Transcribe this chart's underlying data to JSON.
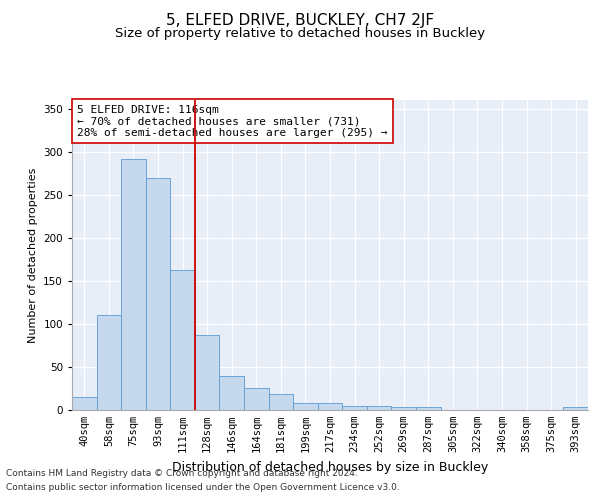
{
  "title": "5, ELFED DRIVE, BUCKLEY, CH7 2JF",
  "subtitle": "Size of property relative to detached houses in Buckley",
  "xlabel": "Distribution of detached houses by size in Buckley",
  "ylabel": "Number of detached properties",
  "categories": [
    "40sqm",
    "58sqm",
    "75sqm",
    "93sqm",
    "111sqm",
    "128sqm",
    "146sqm",
    "164sqm",
    "181sqm",
    "199sqm",
    "217sqm",
    "234sqm",
    "252sqm",
    "269sqm",
    "287sqm",
    "305sqm",
    "322sqm",
    "340sqm",
    "358sqm",
    "375sqm",
    "393sqm"
  ],
  "values": [
    15,
    110,
    291,
    270,
    163,
    87,
    40,
    26,
    19,
    8,
    8,
    5,
    5,
    3,
    3,
    0,
    0,
    0,
    0,
    0,
    3
  ],
  "bar_color": "#c5d8ed",
  "bar_edgecolor": "#5b9bd5",
  "vline_x": 4.5,
  "vline_color": "#cc0000",
  "annotation_text": "5 ELFED DRIVE: 116sqm\n← 70% of detached houses are smaller (731)\n28% of semi-detached houses are larger (295) →",
  "annotation_box_edgecolor": "#cc0000",
  "ylim": [
    0,
    360
  ],
  "yticks": [
    0,
    50,
    100,
    150,
    200,
    250,
    300,
    350
  ],
  "footer1": "Contains HM Land Registry data © Crown copyright and database right 2024.",
  "footer2": "Contains public sector information licensed under the Open Government Licence v3.0.",
  "plot_bg_color": "#e8eef8",
  "title_fontsize": 11,
  "subtitle_fontsize": 9.5,
  "xlabel_fontsize": 9,
  "ylabel_fontsize": 8,
  "tick_fontsize": 7.5,
  "footer_fontsize": 6.5,
  "annotation_fontsize": 8
}
